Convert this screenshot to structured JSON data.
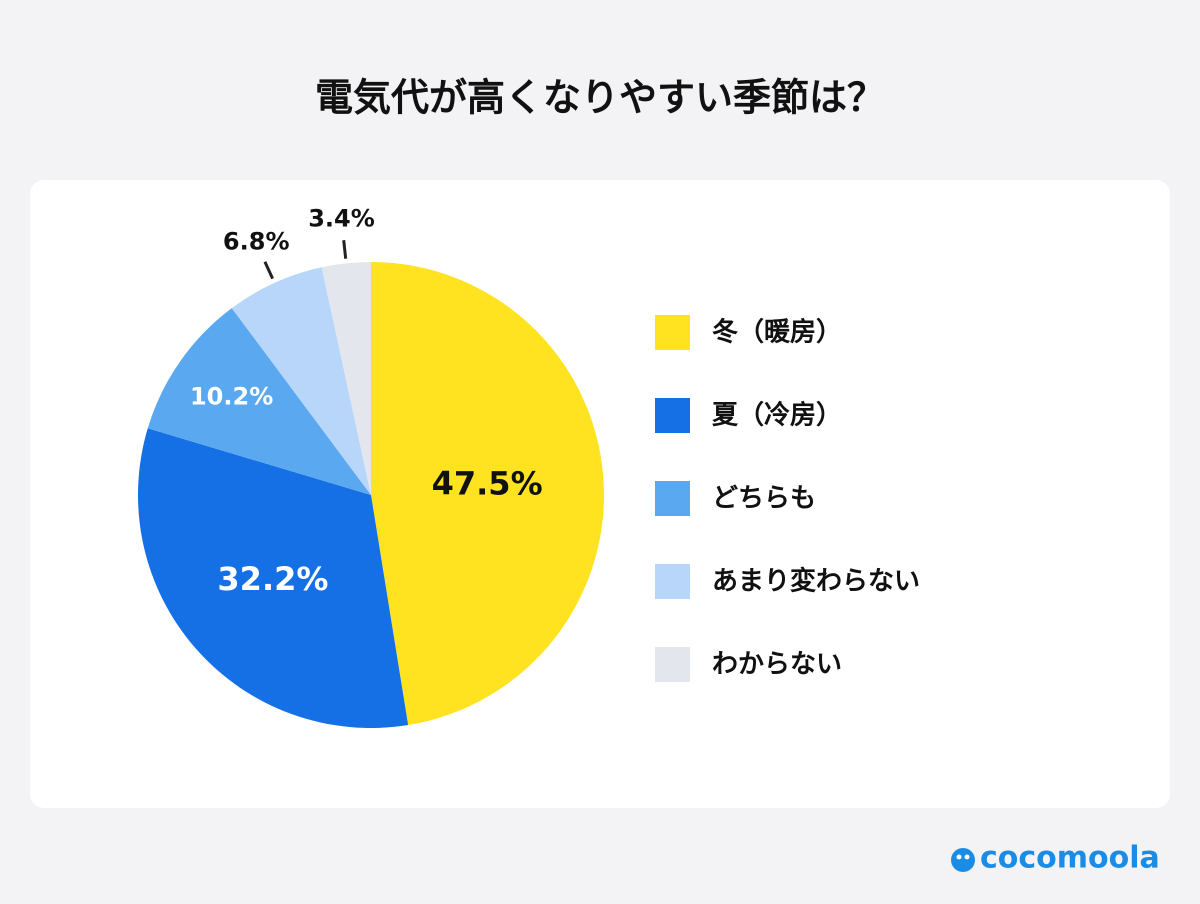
{
  "chart_data": {
    "type": "pie",
    "title": "電気代が高くなりやすい季節は？",
    "categories": [
      "冬（暖房）",
      "夏（冷房）",
      "どちらも",
      "あまり変わらない",
      "わからない"
    ],
    "values": [
      47.5,
      32.2,
      10.2,
      6.8,
      3.4
    ],
    "value_labels": [
      "47.5%",
      "32.2%",
      "10.2%",
      "6.8%",
      "3.4%"
    ],
    "colors": [
      "#FFE320",
      "#1570E6",
      "#5AA8F0",
      "#B8D6FA",
      "#E4E6EE"
    ],
    "legend": "right"
  },
  "brand": "cocomoola"
}
